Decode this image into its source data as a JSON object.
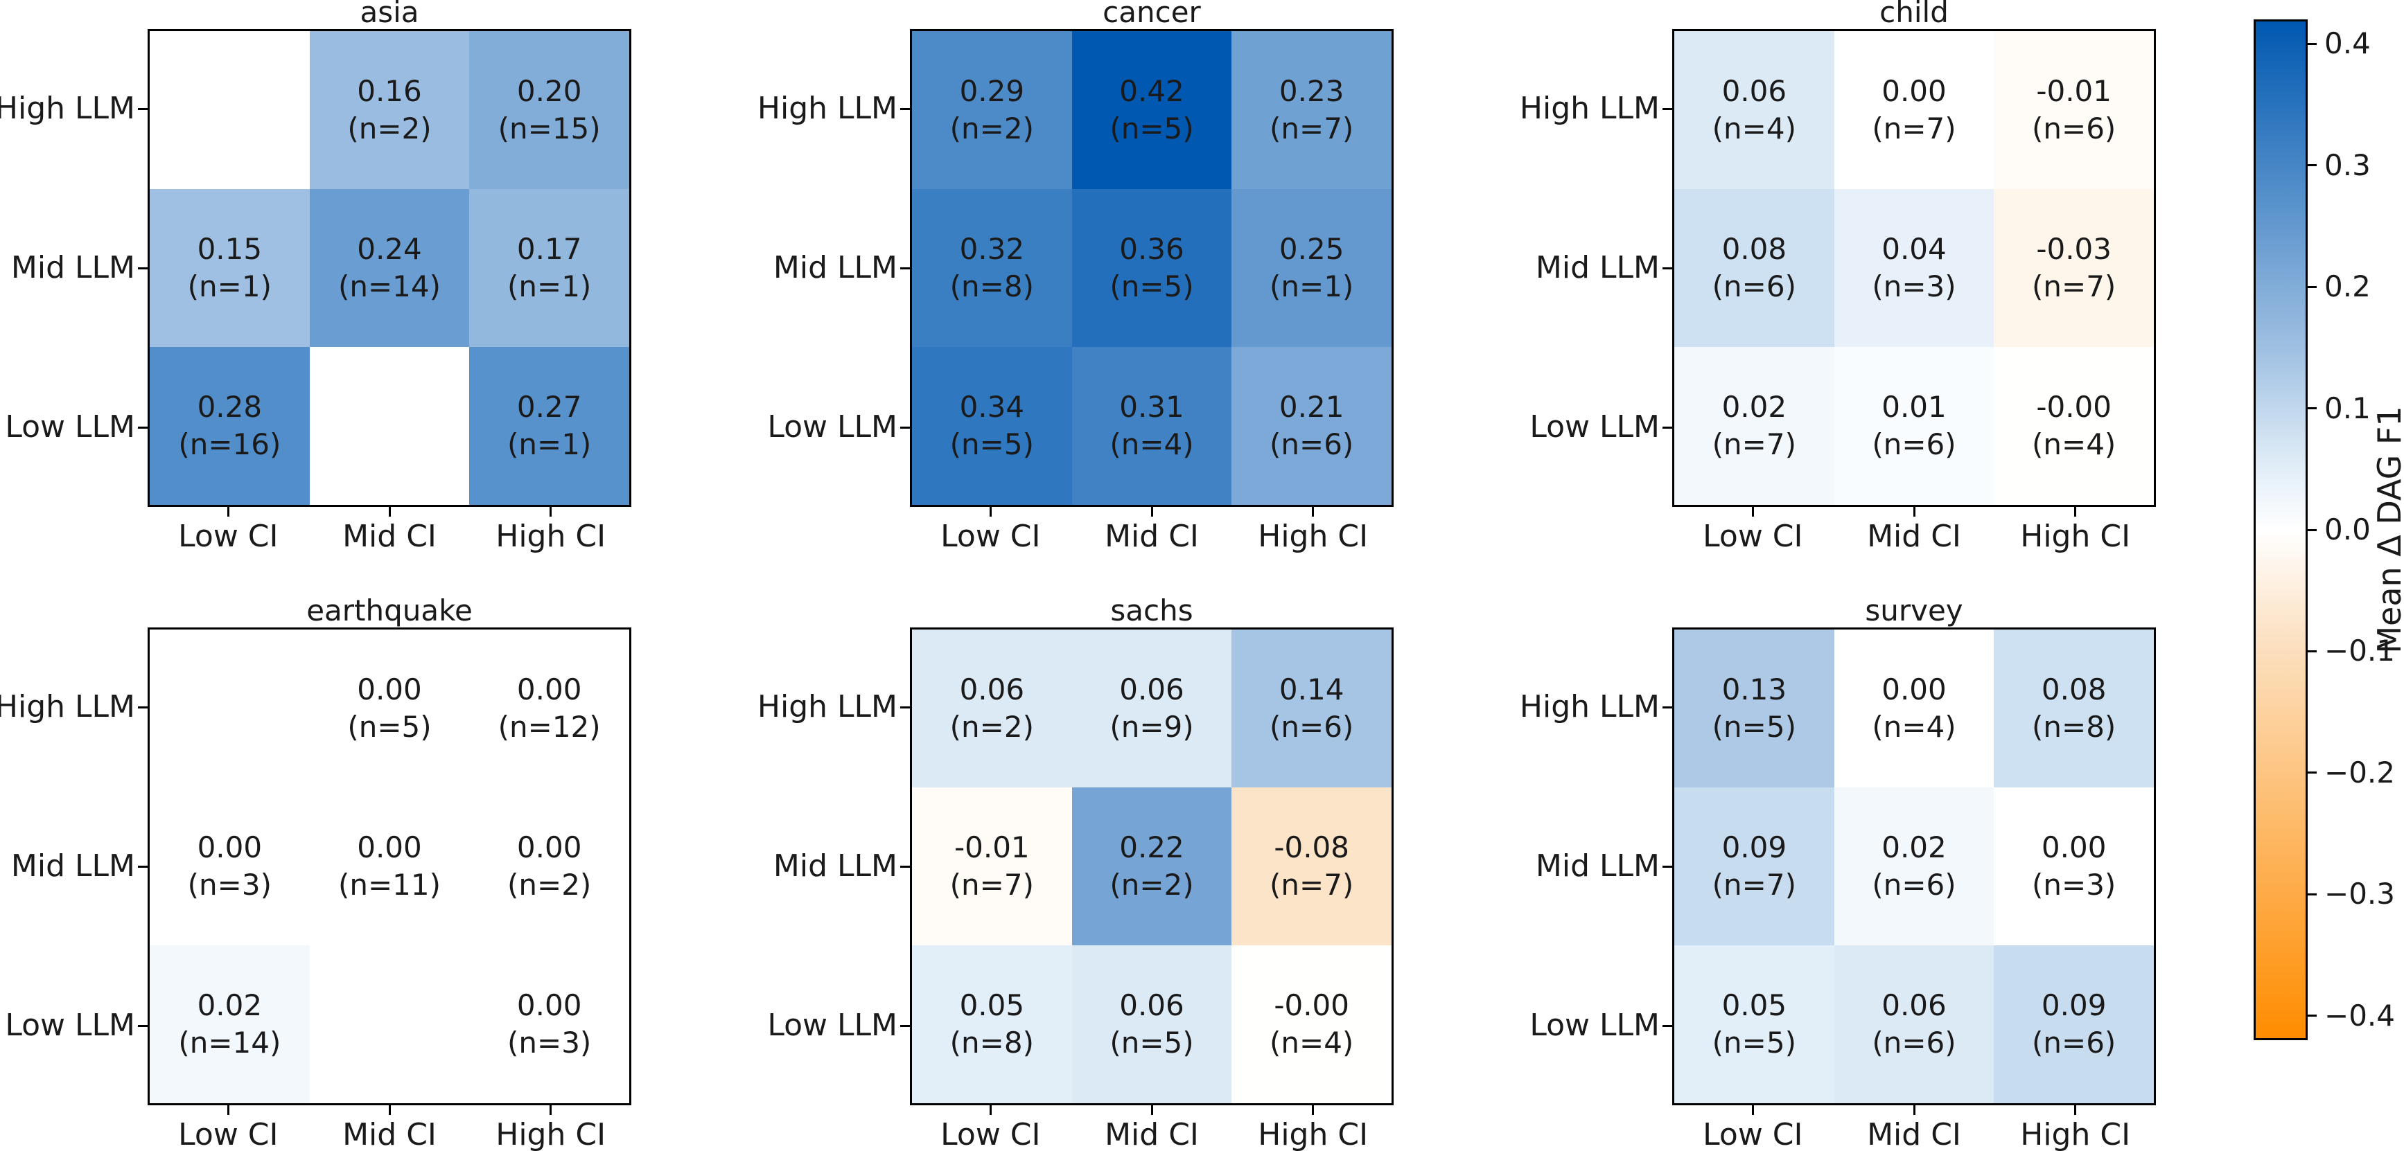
{
  "figure_title": "",
  "chart_data": {
    "type": "heatmap",
    "subplot_grid": {
      "rows": 2,
      "cols": 3
    },
    "row_labels": [
      "High LLM",
      "Mid LLM",
      "Low LLM"
    ],
    "col_labels": [
      "Low CI",
      "Mid CI",
      "High CI"
    ],
    "value_range": [
      -0.42,
      0.42
    ],
    "panels": [
      {
        "title": "asia",
        "cells": [
          [
            {
              "v": null,
              "label": "",
              "n": ""
            },
            {
              "v": 0.16,
              "label": "0.16",
              "n": "(n=2)"
            },
            {
              "v": 0.2,
              "label": "0.20",
              "n": "(n=15)"
            }
          ],
          [
            {
              "v": 0.15,
              "label": "0.15",
              "n": "(n=1)"
            },
            {
              "v": 0.24,
              "label": "0.24",
              "n": "(n=14)"
            },
            {
              "v": 0.17,
              "label": "0.17",
              "n": "(n=1)"
            }
          ],
          [
            {
              "v": 0.28,
              "label": "0.28",
              "n": "(n=16)"
            },
            {
              "v": null,
              "label": "",
              "n": ""
            },
            {
              "v": 0.27,
              "label": "0.27",
              "n": "(n=1)"
            }
          ]
        ]
      },
      {
        "title": "cancer",
        "cells": [
          [
            {
              "v": 0.29,
              "label": "0.29",
              "n": "(n=2)"
            },
            {
              "v": 0.42,
              "label": "0.42",
              "n": "(n=5)"
            },
            {
              "v": 0.23,
              "label": "0.23",
              "n": "(n=7)"
            }
          ],
          [
            {
              "v": 0.32,
              "label": "0.32",
              "n": "(n=8)"
            },
            {
              "v": 0.36,
              "label": "0.36",
              "n": "(n=5)"
            },
            {
              "v": 0.25,
              "label": "0.25",
              "n": "(n=1)"
            }
          ],
          [
            {
              "v": 0.34,
              "label": "0.34",
              "n": "(n=5)"
            },
            {
              "v": 0.31,
              "label": "0.31",
              "n": "(n=4)"
            },
            {
              "v": 0.21,
              "label": "0.21",
              "n": "(n=6)"
            }
          ]
        ]
      },
      {
        "title": "child",
        "cells": [
          [
            {
              "v": 0.06,
              "label": "0.06",
              "n": "(n=4)"
            },
            {
              "v": 0.0,
              "label": "0.00",
              "n": "(n=7)"
            },
            {
              "v": -0.01,
              "label": "-0.01",
              "n": "(n=6)"
            }
          ],
          [
            {
              "v": 0.08,
              "label": "0.08",
              "n": "(n=6)"
            },
            {
              "v": 0.04,
              "label": "0.04",
              "n": "(n=3)"
            },
            {
              "v": -0.03,
              "label": "-0.03",
              "n": "(n=7)"
            }
          ],
          [
            {
              "v": 0.02,
              "label": "0.02",
              "n": "(n=7)"
            },
            {
              "v": 0.01,
              "label": "0.01",
              "n": "(n=6)"
            },
            {
              "v": -0.001,
              "label": "-0.00",
              "n": "(n=4)"
            }
          ]
        ]
      },
      {
        "title": "earthquake",
        "cells": [
          [
            {
              "v": null,
              "label": "",
              "n": ""
            },
            {
              "v": 0.0,
              "label": "0.00",
              "n": "(n=5)"
            },
            {
              "v": 0.0,
              "label": "0.00",
              "n": "(n=12)"
            }
          ],
          [
            {
              "v": 0.0,
              "label": "0.00",
              "n": "(n=3)"
            },
            {
              "v": 0.0,
              "label": "0.00",
              "n": "(n=11)"
            },
            {
              "v": 0.0,
              "label": "0.00",
              "n": "(n=2)"
            }
          ],
          [
            {
              "v": 0.02,
              "label": "0.02",
              "n": "(n=14)"
            },
            {
              "v": null,
              "label": "",
              "n": ""
            },
            {
              "v": 0.0,
              "label": "0.00",
              "n": "(n=3)"
            }
          ]
        ]
      },
      {
        "title": "sachs",
        "cells": [
          [
            {
              "v": 0.06,
              "label": "0.06",
              "n": "(n=2)"
            },
            {
              "v": 0.06,
              "label": "0.06",
              "n": "(n=9)"
            },
            {
              "v": 0.14,
              "label": "0.14",
              "n": "(n=6)"
            }
          ],
          [
            {
              "v": -0.01,
              "label": "-0.01",
              "n": "(n=7)"
            },
            {
              "v": 0.22,
              "label": "0.22",
              "n": "(n=2)"
            },
            {
              "v": -0.08,
              "label": "-0.08",
              "n": "(n=7)"
            }
          ],
          [
            {
              "v": 0.05,
              "label": "0.05",
              "n": "(n=8)"
            },
            {
              "v": 0.06,
              "label": "0.06",
              "n": "(n=5)"
            },
            {
              "v": -0.001,
              "label": "-0.00",
              "n": "(n=4)"
            }
          ]
        ]
      },
      {
        "title": "survey",
        "cells": [
          [
            {
              "v": 0.13,
              "label": "0.13",
              "n": "(n=5)"
            },
            {
              "v": 0.0,
              "label": "0.00",
              "n": "(n=4)"
            },
            {
              "v": 0.08,
              "label": "0.08",
              "n": "(n=8)"
            }
          ],
          [
            {
              "v": 0.09,
              "label": "0.09",
              "n": "(n=7)"
            },
            {
              "v": 0.02,
              "label": "0.02",
              "n": "(n=6)"
            },
            {
              "v": 0.0,
              "label": "0.00",
              "n": "(n=3)"
            }
          ],
          [
            {
              "v": 0.05,
              "label": "0.05",
              "n": "(n=5)"
            },
            {
              "v": 0.06,
              "label": "0.06",
              "n": "(n=6)"
            },
            {
              "v": 0.09,
              "label": "0.09",
              "n": "(n=6)"
            }
          ]
        ]
      }
    ]
  },
  "colorbar": {
    "label": "Mean Δ DAG F1",
    "ticks": [
      {
        "label": "0.4",
        "value": 0.4
      },
      {
        "label": "0.3",
        "value": 0.3
      },
      {
        "label": "0.2",
        "value": 0.2
      },
      {
        "label": "0.1",
        "value": 0.1
      },
      {
        "label": "0.0",
        "value": 0.0
      },
      {
        "label": "−0.1",
        "value": -0.1
      },
      {
        "label": "−0.2",
        "value": -0.2
      },
      {
        "label": "−0.3",
        "value": -0.3
      },
      {
        "label": "−0.4",
        "value": -0.4
      }
    ],
    "vmin": -0.42,
    "vmax": 0.42,
    "colors": {
      "positive_max": "#0058b0",
      "zero": "#ffffff",
      "negative_max": "#ff8c00"
    }
  }
}
